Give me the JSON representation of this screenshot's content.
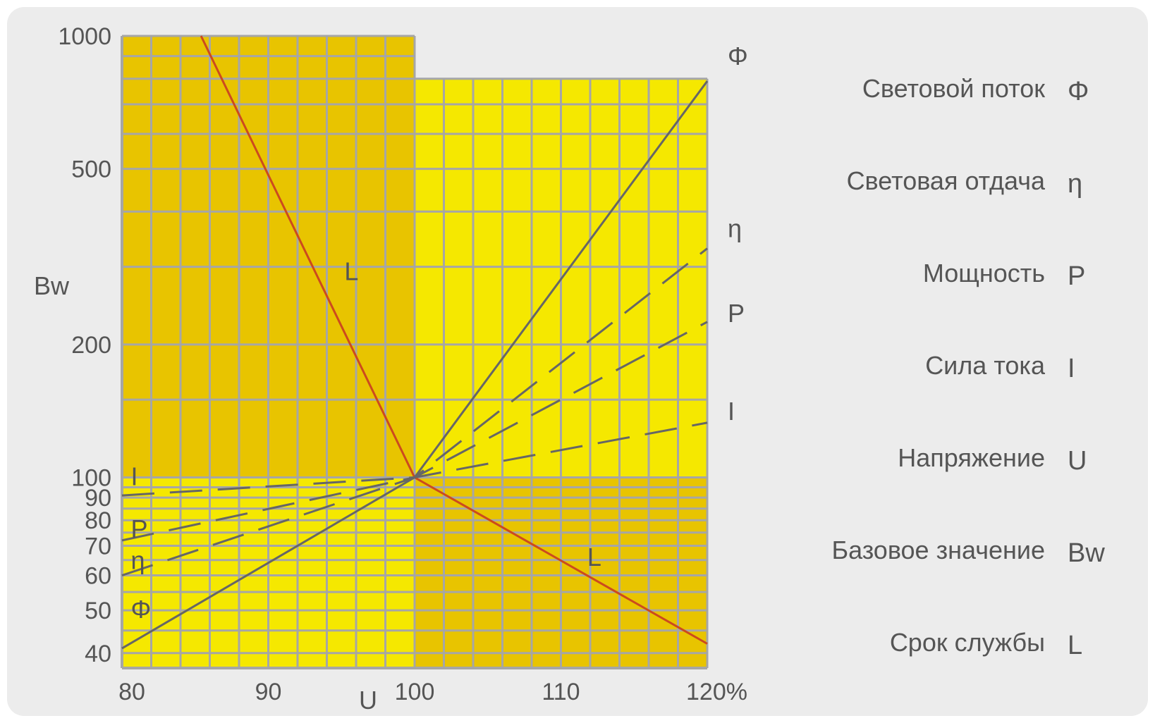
{
  "chart_data": {
    "type": "line",
    "xlabel": "U",
    "ylabel": "Bw",
    "x_ticks": [
      "80",
      "90",
      "100",
      "110",
      "120%"
    ],
    "y_ticks": [
      "1000",
      "500",
      "200",
      "100",
      "90",
      "80",
      "70",
      "60",
      "50",
      "40"
    ],
    "y_scale": "log",
    "xlim": [
      80,
      120
    ],
    "ylim": [
      37,
      1000
    ],
    "grid": true,
    "series": [
      {
        "name": "L",
        "style": "solid",
        "color": "#cc4a1e",
        "x": [
          85.4,
          100,
          120
        ],
        "y": [
          1000,
          100,
          42
        ]
      },
      {
        "name": "Φ",
        "style": "solid",
        "color": "#666666",
        "x": [
          80,
          100,
          120
        ],
        "y": [
          41,
          100,
          790
        ]
      },
      {
        "name": "η",
        "style": "dashed",
        "color": "#666666",
        "x": [
          80,
          100,
          120
        ],
        "y": [
          60,
          100,
          330
        ]
      },
      {
        "name": "P",
        "style": "dashed",
        "color": "#666666",
        "x": [
          80,
          100,
          120
        ],
        "y": [
          72,
          100,
          225
        ]
      },
      {
        "name": "I",
        "style": "dashed",
        "color": "#666666",
        "x": [
          80,
          100,
          120
        ],
        "y": [
          91,
          100,
          133
        ]
      }
    ],
    "curve_labels": [
      {
        "text": "L",
        "x": 95.2,
        "y": 280
      },
      {
        "text": "L",
        "x": 111.8,
        "y": 63
      },
      {
        "text": "Φ",
        "x": 121.4,
        "y": 860
      },
      {
        "text": "η",
        "x": 121.4,
        "y": 350
      },
      {
        "text": "P",
        "x": 121.4,
        "y": 225
      },
      {
        "text": "I",
        "x": 121.4,
        "y": 135
      },
      {
        "text": "I",
        "x": 80.6,
        "y": 96
      },
      {
        "text": "P",
        "x": 80.6,
        "y": 73
      },
      {
        "text": "η",
        "x": 80.6,
        "y": 62
      },
      {
        "text": "Φ",
        "x": 80.6,
        "y": 48
      }
    ],
    "legend": {
      "placement": "right",
      "items": [
        {
          "label": "Световой поток",
          "symbol": "Φ"
        },
        {
          "label": "Световая отдача",
          "symbol": "η"
        },
        {
          "label": "Мощность",
          "symbol": "P"
        },
        {
          "label": "Сила тока",
          "symbol": "I"
        },
        {
          "label": "Напряжение",
          "symbol": "U"
        },
        {
          "label": "Базовое значение",
          "symbol": "Bw"
        },
        {
          "label": "Срок службы",
          "symbol": "L"
        }
      ]
    },
    "colors": {
      "light_yellow": "#f5e800",
      "dark_yellow": "#e8c400",
      "grid": "#a6a6a6",
      "background": "#ececec"
    }
  }
}
